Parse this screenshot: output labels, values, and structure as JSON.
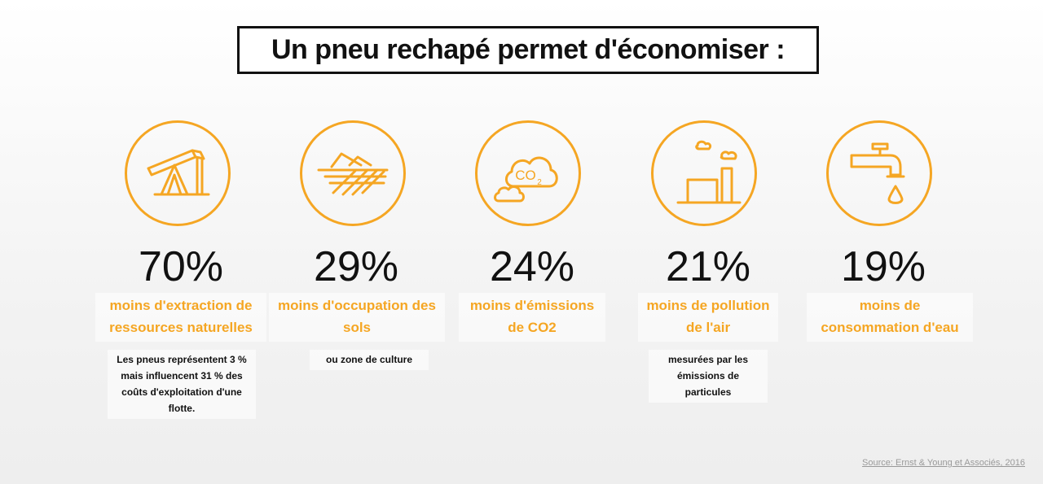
{
  "title": "Un pneu rechapé permet d'économiser :",
  "accent_color": "#f5a623",
  "stats": [
    {
      "icon": "oil-pump-icon",
      "value": "70%",
      "description_lines": [
        "moins d'extraction de",
        "ressources naturelles"
      ],
      "note_lines": [
        "Les pneus représentent 3 %",
        "mais influencent 31 % des",
        "coûts d'exploitation d'une",
        "flotte."
      ]
    },
    {
      "icon": "farmland-icon",
      "value": "29%",
      "description_lines": [
        "moins d'occupation des",
        "sols"
      ],
      "note_lines": [
        "ou zone de culture"
      ]
    },
    {
      "icon": "co2-cloud-icon",
      "icon_text": "CO",
      "icon_subscript": "2",
      "value": "24%",
      "description_lines": [
        "moins d'émissions",
        "de CO2"
      ],
      "note_lines": []
    },
    {
      "icon": "factory-icon",
      "value": "21%",
      "description_lines": [
        "moins de pollution",
        "de l'air"
      ],
      "note_lines": [
        "mesurées par les",
        "émissions de",
        "particules"
      ]
    },
    {
      "icon": "water-tap-icon",
      "value": "19%",
      "description_lines": [
        "moins de",
        "consommation d'eau"
      ],
      "note_lines": []
    }
  ],
  "source": "Source: Ernst & Young et Associés, 2016"
}
